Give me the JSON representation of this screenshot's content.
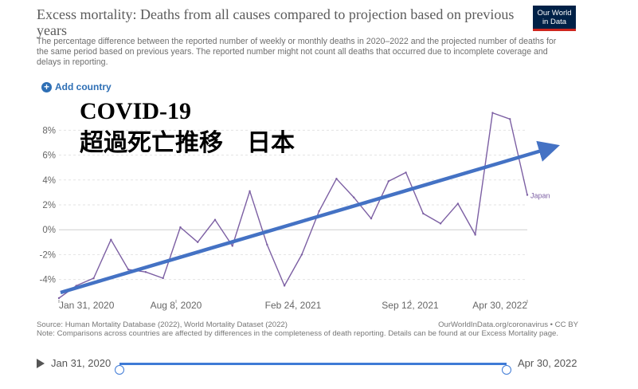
{
  "header": {
    "title": "Excess mortality: Deaths from all causes compared to projection based on previous years",
    "subtitle": "The percentage difference between the reported number of weekly or monthly deaths in 2020–2022 and the projected number of deaths for the same period based on previous years. The reported number might not count all deaths that occurred due to incomplete coverage and delays in reporting.",
    "logo_line1": "Our World",
    "logo_line2": "in Data",
    "add_country": "Add country"
  },
  "overlay": {
    "line1": "COVID-19",
    "line2": "超過死亡推移　日本",
    "arrow_color": "#4472c4"
  },
  "footer": {
    "source": "Source: Human Mortality Database (2022), World Mortality Dataset (2022)",
    "credit": "OurWorldInData.org/coronavirus • CC BY",
    "note": "Note: Comparisons across countries are affected by differences in the completeness of death reporting. Details can be found at our Excess Mortality page."
  },
  "timeline": {
    "start_label": "Jan 31, 2020",
    "end_label": "Apr 30, 2022",
    "start_fraction": 0,
    "end_fraction": 1
  },
  "chart_data": {
    "type": "line",
    "title": "",
    "xlabel": "",
    "ylabel": "",
    "ylim": [
      -5.5,
      9.5
    ],
    "yticks": [
      -4,
      -2,
      0,
      2,
      4,
      6,
      8
    ],
    "ytick_labels": [
      "-4%",
      "-2%",
      "0%",
      "2%",
      "4%",
      "6%",
      "8%"
    ],
    "xticks": [
      "Jan 31, 2020",
      "Aug 8, 2020",
      "Feb 24, 2021",
      "Sep 12, 2021",
      "Apr 30, 2022"
    ],
    "grid": true,
    "series": [
      {
        "name": "Japan",
        "color": "#7c5fa3",
        "values": [
          -5.5,
          -4.5,
          -3.9,
          -0.8,
          -3.2,
          -3.4,
          -3.9,
          0.2,
          -1.0,
          0.8,
          -1.3,
          3.1,
          -1.2,
          -4.5,
          -2.0,
          1.5,
          4.1,
          2.6,
          0.9,
          3.9,
          4.6,
          1.3,
          0.5,
          2.1,
          -0.4,
          9.4,
          8.9,
          2.8
        ]
      }
    ]
  }
}
